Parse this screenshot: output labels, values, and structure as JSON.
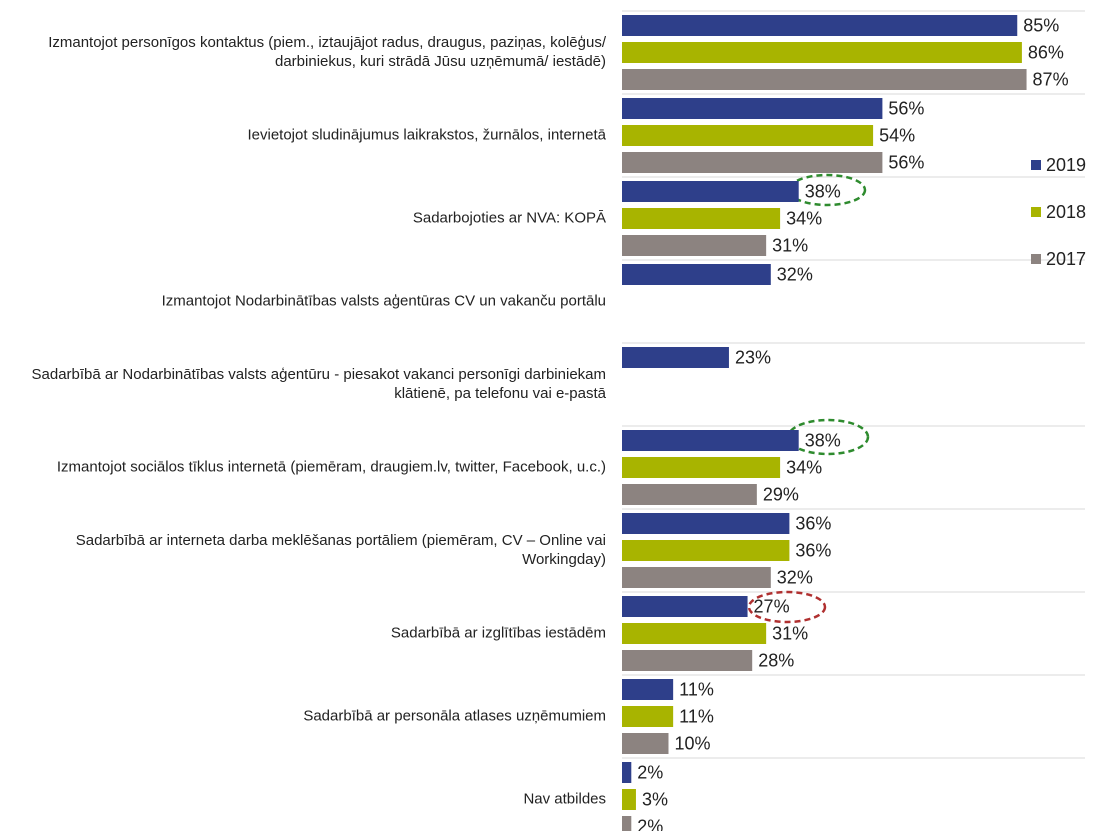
{
  "chart_data": {
    "type": "bar",
    "orientation": "horizontal",
    "categories": [
      "Izmantojot personīgos kontaktus (piem., iztaujājot radus, draugus, paziņas, kolēģus/ darbiniekus, kuri strādā Jūsu uzņēmumā/ iestādē)",
      "Ievietojot sludinājumus laikrakstos, žurnālos, internetā",
      "Sadarbojoties ar NVA: KOPĀ",
      "Izmantojot Nodarbinātības valsts aģentūras CV un vakanču portālu",
      "Sadarbībā ar Nodarbinātības valsts aģentūru - piesakot vakanci personīgi darbiniekam klātienē, pa telefonu vai e-pastā",
      "Izmantojot sociālos tīklus internetā (piemēram, draugiem.lv, twitter, Facebook, u.c.)",
      "Sadarbībā ar interneta darba meklēšanas portāliem (piemēram, CV – Online vai Workingday)",
      "Sadarbībā ar izglītības iestādēm",
      "Sadarbībā ar personāla atlases uzņēmumiem",
      "Nav atbildes"
    ],
    "series": [
      {
        "name": "2019",
        "color": "#2e3f8a",
        "values": [
          85,
          56,
          38,
          32,
          23,
          38,
          36,
          27,
          11,
          2
        ],
        "value_labels": [
          "85%",
          "56%",
          "38%",
          "32%",
          "23%",
          "38%",
          "36%",
          "27%",
          "11%",
          "2%"
        ]
      },
      {
        "name": "2018",
        "color": "#a8b400",
        "values": [
          86,
          54,
          34,
          null,
          null,
          34,
          36,
          31,
          11,
          3
        ],
        "value_labels": [
          "86%",
          "54%",
          "34%",
          null,
          null,
          "34%",
          "36%",
          "31%",
          "11%",
          "3%"
        ]
      },
      {
        "name": "2017",
        "color": "#8c8380",
        "values": [
          87,
          56,
          31,
          null,
          null,
          29,
          32,
          28,
          10,
          2
        ],
        "value_labels": [
          "87%",
          "56%",
          "31%",
          null,
          null,
          "29%",
          "32%",
          "28%",
          "10%",
          "2%"
        ]
      }
    ],
    "legend": "right"
  }
}
